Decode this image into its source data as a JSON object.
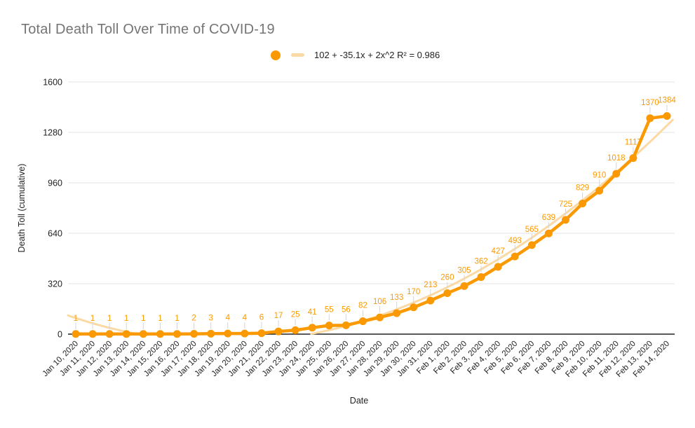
{
  "title": "Total Death Toll Over Time of COVID-19",
  "legend": {
    "series_marker": "circle-icon",
    "trendline_label": "102 + -35.1x + 2x^2 R² = 0.986"
  },
  "axes": {
    "x_title": "Date",
    "y_title": "Death Toll (cumulative)",
    "y_ticks": [
      0,
      320,
      640,
      960,
      1280,
      1600
    ]
  },
  "colors": {
    "series": "#FB9902",
    "trendline": "#FBD9A5",
    "title_text": "#757575",
    "axis_text": "#222222",
    "gridline": "#E3E3E3",
    "axis_line": "#222222",
    "leader": "#D5D5D5"
  },
  "chart_data": {
    "type": "line",
    "title": "Total Death Toll Over Time of COVID-19",
    "xlabel": "Date",
    "ylabel": "Death Toll (cumulative)",
    "ylim": [
      0,
      1600
    ],
    "grid": true,
    "legend_position": "top",
    "point_labels": true,
    "x": [
      "Jan 10, 2020",
      "Jan 11, 2020",
      "Jan 12, 2020",
      "Jan 13, 2020",
      "Jan 14, 2020",
      "Jan 15, 2020",
      "Jan 16, 2020",
      "Jan 17, 2020",
      "Jan 18, 2020",
      "Jan 19, 2020",
      "Jan 20, 2020",
      "Jan 21, 2020",
      "Jan 22, 2020",
      "Jan 23, 2020",
      "Jan 24, 2020",
      "Jan 25, 2020",
      "Jan 26, 2020",
      "Jan 27, 2020",
      "Jan 28, 2020",
      "Jan 29, 2020",
      "Jan 30, 2020",
      "Jan 31, 2020",
      "Feb 1, 2020",
      "Feb 2, 2020",
      "Feb 3, 2020",
      "Feb 4, 2020",
      "Feb 5, 2020",
      "Feb 6, 2020",
      "Feb 7, 2020",
      "Feb 8, 2020",
      "Feb 9, 2020",
      "Feb 10, 2020",
      "Feb 11, 2020",
      "Feb 12, 2020",
      "Feb 13, 2020",
      "Feb 14, 2020"
    ],
    "values": [
      1,
      1,
      1,
      1,
      1,
      1,
      1,
      2,
      3,
      4,
      4,
      6,
      17,
      25,
      41,
      55,
      56,
      82,
      106,
      133,
      170,
      213,
      260,
      305,
      362,
      427,
      493,
      565,
      639,
      725,
      829,
      910,
      1018,
      1117,
      1370,
      1384
    ],
    "trendline": {
      "type": "quadratic",
      "c0": 102,
      "c1": -35.1,
      "c2": 2,
      "r2": 0.986,
      "label": "102 + -35.1x + 2x^2 R² = 0.986"
    }
  }
}
